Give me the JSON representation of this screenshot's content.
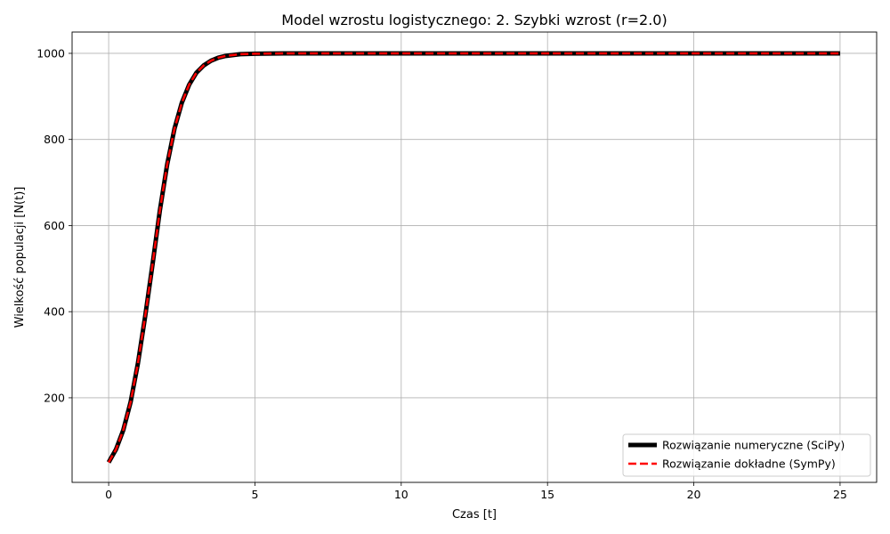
{
  "chart_data": {
    "type": "line",
    "title": "Model wzrostu logistycznego: 2. Szybki wzrost (r=2.0)",
    "xlabel": "Czas [t]",
    "ylabel": "Wielkość populacji [N(t)]",
    "xlim": [
      -1.25,
      26.25
    ],
    "ylim": [
      3.5,
      1049.5
    ],
    "xticks": [
      0,
      5,
      10,
      15,
      20,
      25
    ],
    "yticks": [
      200,
      400,
      600,
      800,
      1000
    ],
    "grid": true,
    "legend_position": "lower-right",
    "series": [
      {
        "name": "Rozwiązanie numeryczne (SciPy)",
        "color": "#000000",
        "style": "solid",
        "x": [
          0,
          0.25,
          0.5,
          0.75,
          1,
          1.25,
          1.5,
          1.75,
          2,
          2.25,
          2.5,
          2.75,
          3,
          3.25,
          3.5,
          3.75,
          4,
          4.5,
          5,
          6,
          8,
          10,
          12.5,
          15,
          17.5,
          20,
          22.5,
          25
        ],
        "y": [
          50,
          80,
          125,
          190,
          280,
          390,
          510,
          635,
          742,
          825,
          885,
          927,
          955,
          972,
          983,
          990,
          994,
          998,
          999,
          1000,
          1000,
          1000,
          1000,
          1000,
          1000,
          1000,
          1000,
          1000
        ]
      },
      {
        "name": "Rozwiązanie dokładne (SymPy)",
        "color": "#ff0000",
        "style": "dashed",
        "x": [
          0,
          0.25,
          0.5,
          0.75,
          1,
          1.25,
          1.5,
          1.75,
          2,
          2.25,
          2.5,
          2.75,
          3,
          3.25,
          3.5,
          3.75,
          4,
          4.5,
          5,
          6,
          8,
          10,
          12.5,
          15,
          17.5,
          20,
          22.5,
          25
        ],
        "y": [
          50,
          80,
          125,
          190,
          280,
          390,
          510,
          635,
          742,
          825,
          885,
          927,
          955,
          972,
          983,
          990,
          994,
          998,
          999,
          1000,
          1000,
          1000,
          1000,
          1000,
          1000,
          1000,
          1000,
          1000
        ]
      }
    ]
  }
}
